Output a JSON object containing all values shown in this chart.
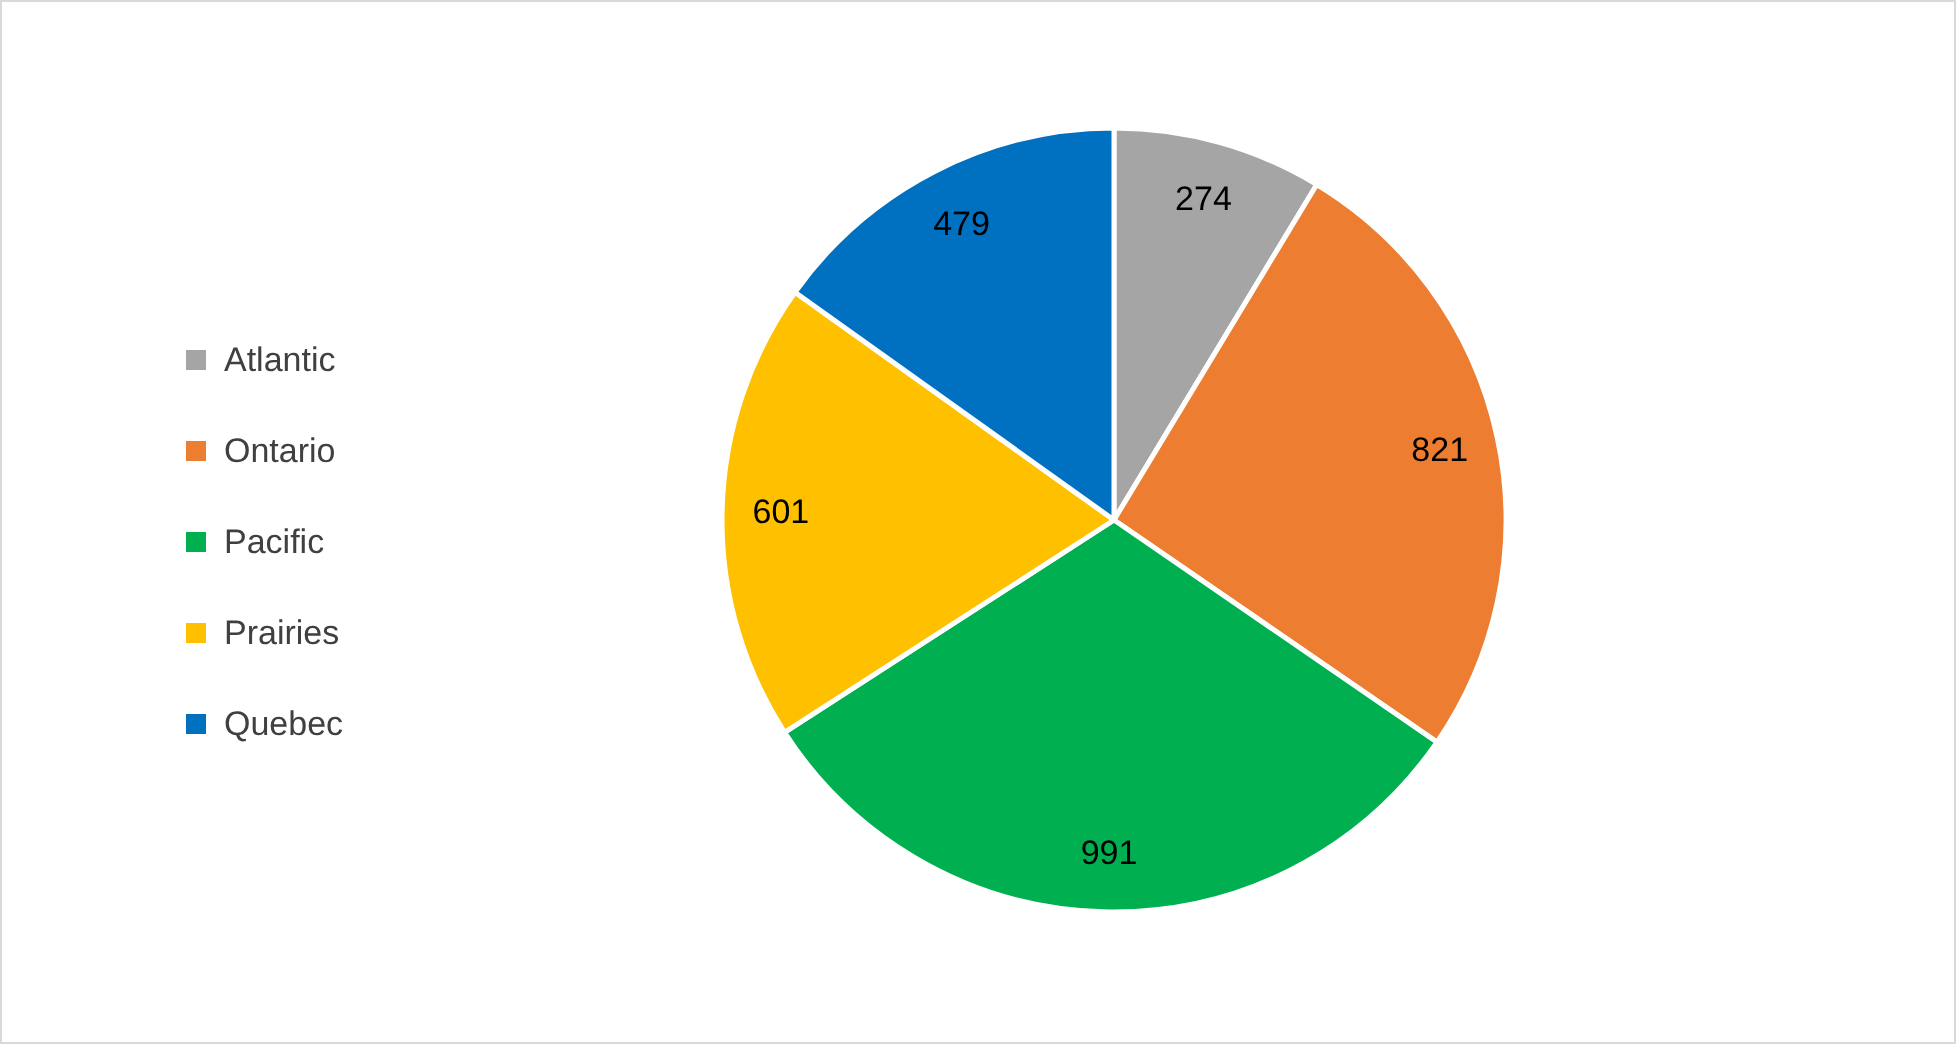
{
  "chart_data": {
    "type": "pie",
    "categories": [
      "Atlantic",
      "Ontario",
      "Pacific",
      "Prairies",
      "Quebec"
    ],
    "values": [
      274,
      821,
      991,
      601,
      479
    ],
    "colors": [
      "#a5a5a5",
      "#ed7d31",
      "#00b050",
      "#ffc000",
      "#0070c0"
    ],
    "data_labels": true,
    "legend": "left"
  }
}
